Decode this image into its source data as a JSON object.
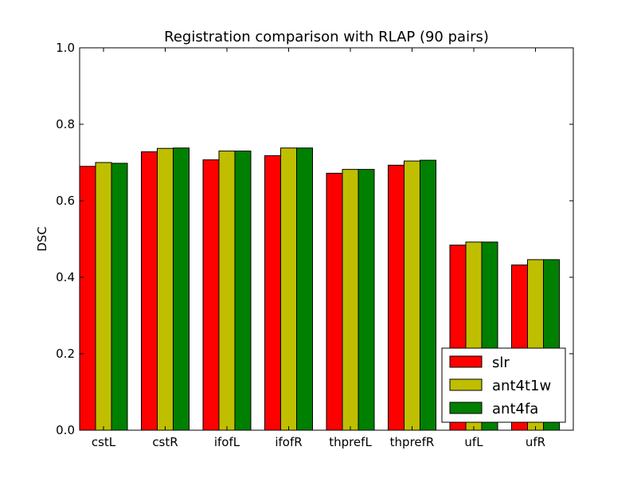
{
  "chart_data": {
    "type": "bar",
    "title": "Registration comparison with RLAP (90 pairs)",
    "xlabel": "",
    "ylabel": "DSC",
    "ylim": [
      0,
      1.0
    ],
    "yticks": [
      "0.0",
      "0.2",
      "0.4",
      "0.6",
      "0.8",
      "1.0"
    ],
    "categories": [
      "cstL",
      "cstR",
      "ifofL",
      "ifofR",
      "thprefL",
      "thprefR",
      "ufL",
      "ufR"
    ],
    "series": [
      {
        "name": "slr",
        "color": "#ff0000",
        "values": [
          0.69,
          0.728,
          0.707,
          0.718,
          0.672,
          0.693,
          0.484,
          0.432
        ]
      },
      {
        "name": "ant4t1w",
        "color": "#bfbf00",
        "values": [
          0.7,
          0.737,
          0.73,
          0.738,
          0.682,
          0.704,
          0.492,
          0.446
        ]
      },
      {
        "name": "ant4fa",
        "color": "#008000",
        "values": [
          0.698,
          0.738,
          0.73,
          0.738,
          0.682,
          0.706,
          0.492,
          0.446
        ]
      }
    ],
    "grid": false,
    "legend_position": "lower-right"
  }
}
